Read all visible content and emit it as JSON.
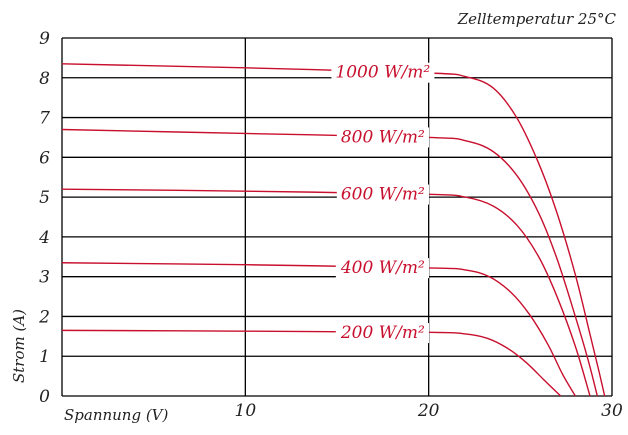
{
  "chart_data": {
    "type": "line",
    "annotation": "Zelltemperatur 25°C",
    "xlabel": "Spannung (V)",
    "ylabel": "Strom (A)",
    "xlim": [
      0,
      30
    ],
    "ylim": [
      0,
      9
    ],
    "x_ticks": [
      "10",
      "20",
      "30"
    ],
    "y_ticks": [
      "0",
      "1",
      "2",
      "3",
      "4",
      "5",
      "6",
      "7",
      "8",
      "9"
    ],
    "grid": true,
    "colors": {
      "series": "#c8102e",
      "grid": "#000000",
      "text": "#222222"
    },
    "series": [
      {
        "label_text": "1000 W/m²",
        "label_at_x": 17.5,
        "points": [
          [
            0,
            8.35
          ],
          [
            10,
            8.25
          ],
          [
            20,
            8.12
          ],
          [
            22,
            8.03
          ],
          [
            23.5,
            7.75
          ],
          [
            24.8,
            7.0
          ],
          [
            26,
            5.85
          ],
          [
            27,
            4.6
          ],
          [
            28,
            3.05
          ],
          [
            28.8,
            1.55
          ],
          [
            29.3,
            0.6
          ],
          [
            29.6,
            0
          ]
        ]
      },
      {
        "label_text": "800 W/m²",
        "label_at_x": 17.5,
        "points": [
          [
            0,
            6.7
          ],
          [
            10,
            6.6
          ],
          [
            20,
            6.5
          ],
          [
            22,
            6.42
          ],
          [
            23.5,
            6.15
          ],
          [
            24.8,
            5.55
          ],
          [
            26,
            4.6
          ],
          [
            27,
            3.45
          ],
          [
            28,
            2.0
          ],
          [
            28.7,
            0.9
          ],
          [
            29.2,
            0
          ]
        ]
      },
      {
        "label_text": "600 W/m²",
        "label_at_x": 17.5,
        "points": [
          [
            0,
            5.2
          ],
          [
            10,
            5.15
          ],
          [
            20,
            5.07
          ],
          [
            22,
            5.0
          ],
          [
            23.5,
            4.78
          ],
          [
            24.8,
            4.3
          ],
          [
            26,
            3.5
          ],
          [
            27,
            2.5
          ],
          [
            28,
            1.25
          ],
          [
            28.8,
            0
          ]
        ]
      },
      {
        "label_text": "400 W/m²",
        "label_at_x": 17.5,
        "points": [
          [
            0,
            3.35
          ],
          [
            10,
            3.3
          ],
          [
            20,
            3.22
          ],
          [
            22,
            3.17
          ],
          [
            23.3,
            3.0
          ],
          [
            24.5,
            2.6
          ],
          [
            25.5,
            2.05
          ],
          [
            26.5,
            1.3
          ],
          [
            27.3,
            0.55
          ],
          [
            28,
            0
          ]
        ]
      },
      {
        "label_text": "200 W/m²",
        "label_at_x": 17.5,
        "points": [
          [
            0,
            1.65
          ],
          [
            10,
            1.63
          ],
          [
            20,
            1.6
          ],
          [
            22,
            1.56
          ],
          [
            23.2,
            1.45
          ],
          [
            24.3,
            1.2
          ],
          [
            25.3,
            0.85
          ],
          [
            26.3,
            0.4
          ],
          [
            27.2,
            0
          ]
        ]
      }
    ]
  }
}
